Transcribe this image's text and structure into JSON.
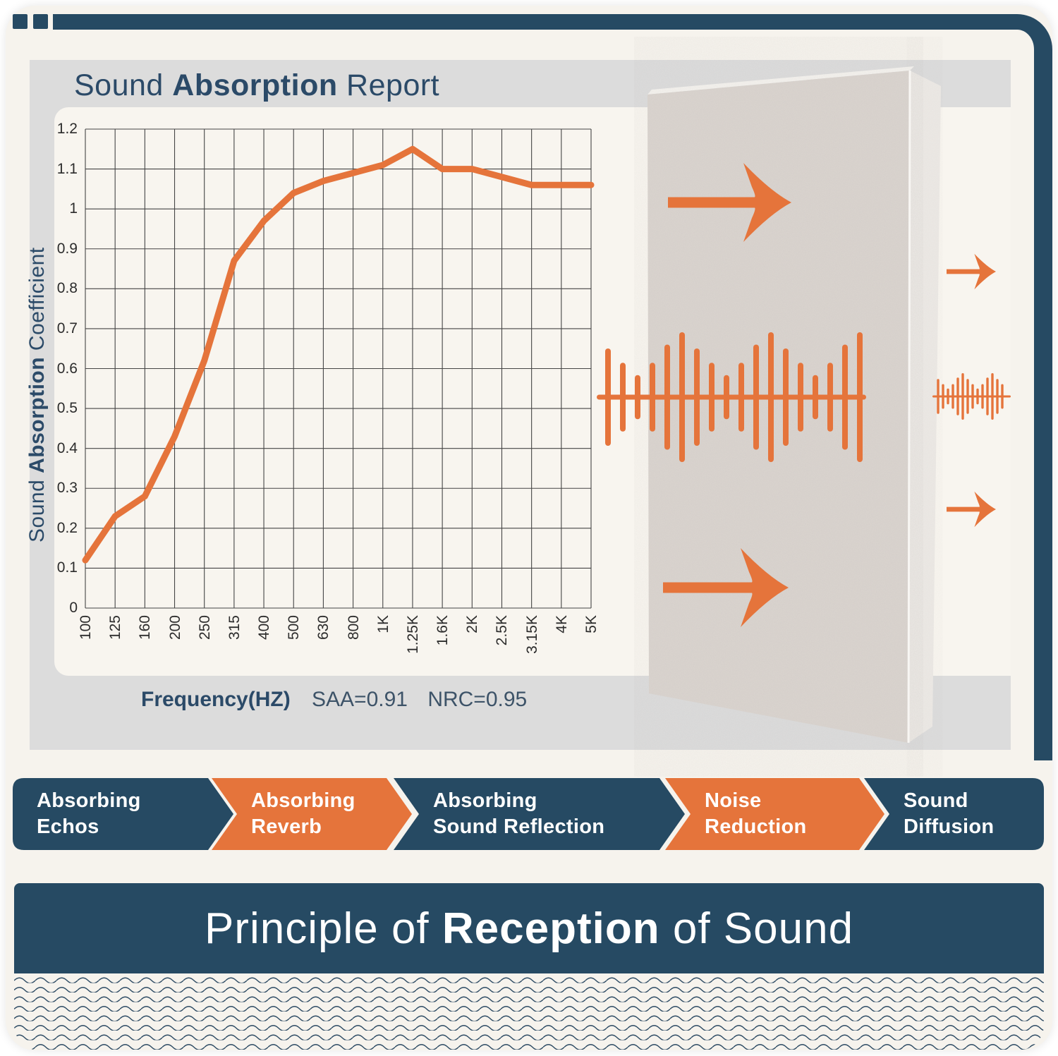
{
  "colors": {
    "navy": "#264a63",
    "orange": "#e5743b",
    "gray_band": "#dcdcdc",
    "card_bg": "#f6f3ed",
    "chart_window_bg": "#f8f5ef",
    "grid_line": "#454545",
    "panel_front": "#dad4cf",
    "panel_side": "#ece9e5",
    "text_white": "#ffffff"
  },
  "header": {
    "title_pre": "Sound ",
    "title_em": "Absorption",
    "title_post": " Report"
  },
  "chart_data": {
    "type": "line",
    "title": "Sound Absorption Report",
    "categories": [
      "100",
      "125",
      "160",
      "200",
      "250",
      "315",
      "400",
      "500",
      "630",
      "800",
      "1K",
      "1.25K",
      "1.6K",
      "2K",
      "2.5K",
      "3.15K",
      "4K",
      "5K"
    ],
    "values": [
      0.12,
      0.23,
      0.28,
      0.43,
      0.62,
      0.87,
      0.97,
      1.04,
      1.07,
      1.09,
      1.11,
      1.15,
      1.1,
      1.1,
      1.08,
      1.06,
      1.06,
      1.06
    ],
    "xlabel": "Frequency(HZ)",
    "ylabel_pre": "Sound ",
    "ylabel_em": "Absorption",
    "ylabel_post": " Coefficient",
    "ylim": [
      0,
      1.2
    ],
    "yticks": [
      "1.2",
      "1.1",
      "1",
      "0.9",
      "0.8",
      "0.7",
      "0.6",
      "0.5",
      "0.4",
      "0.3",
      "0.2",
      "0.1",
      "0"
    ],
    "grid": true,
    "legend_position": "none",
    "line_color": "#e5743b",
    "annotations": [
      "SAA=0.91",
      "NRC=0.95"
    ]
  },
  "chart_caption": {
    "label": "Frequency(HZ)",
    "saa": "SAA=0.91",
    "nrc": "NRC=0.95"
  },
  "banners": [
    {
      "line1": "Absorbing",
      "line2": "Echos",
      "color": "navy"
    },
    {
      "line1": "Absorbing",
      "line2": "Reverb",
      "color": "orange"
    },
    {
      "line1": "Absorbing",
      "line2": "Sound Reflection",
      "color": "navy"
    },
    {
      "line1": "Noise",
      "line2": "Reduction",
      "color": "orange"
    },
    {
      "line1": "Sound",
      "line2": "Diffusion",
      "color": "navy"
    }
  ],
  "footer": {
    "title_pre": "Principle of ",
    "title_em": "Reception",
    "title_post": " of Sound"
  },
  "graphics": {
    "waveform_icon_pattern": [
      0.75,
      0.53,
      0.34,
      0.53,
      0.81,
      1.0
    ]
  }
}
